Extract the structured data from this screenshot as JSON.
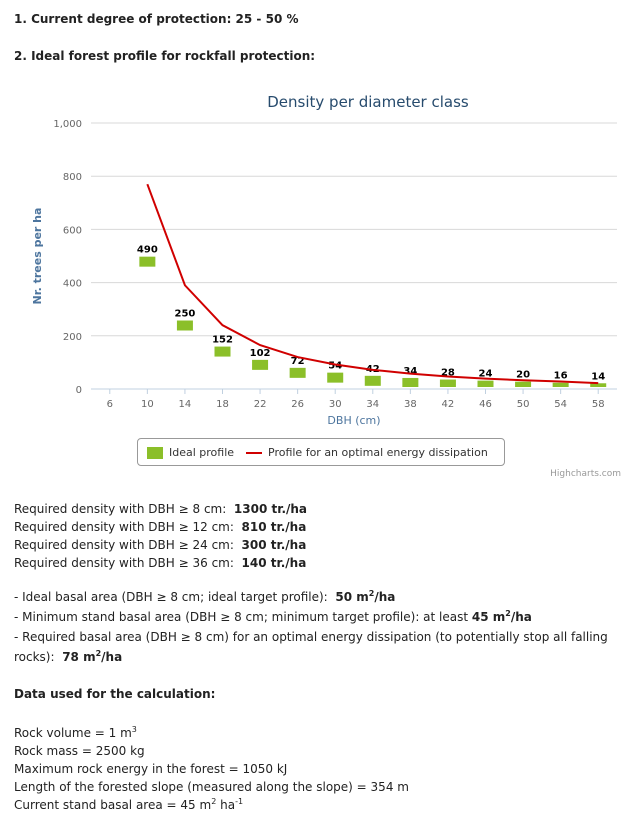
{
  "header": {
    "protection": "1. Current degree of protection: 25 - 50 %",
    "profile_title": "2. Ideal forest profile for rockfall protection:"
  },
  "chart_data": {
    "type": "bar",
    "title": "Density per diameter class",
    "xlabel": "DBH (cm)",
    "ylabel": "Nr. trees per ha",
    "ylim": [
      0,
      1000
    ],
    "yticks": [
      "0",
      "200",
      "400",
      "600",
      "800",
      "1,000"
    ],
    "x_ticks": [
      6,
      10,
      14,
      18,
      22,
      26,
      30,
      34,
      38,
      42,
      46,
      50,
      54,
      58
    ],
    "xlim": [
      4,
      60
    ],
    "grid": true,
    "legend_position": "bottom",
    "bar_color": "#8BBF29",
    "line_color": "#d00000",
    "bars": {
      "name": "Ideal profile",
      "x": [
        10,
        14,
        18,
        22,
        26,
        30,
        34,
        38,
        42,
        46,
        50,
        54,
        58
      ],
      "values": [
        490,
        250,
        152,
        102,
        72,
        54,
        42,
        34,
        28,
        24,
        20,
        16,
        14
      ],
      "labels": [
        "490",
        "250",
        "152",
        "102",
        "72",
        "54",
        "42",
        "34",
        "28",
        "24",
        "20",
        "16",
        "14"
      ]
    },
    "line": {
      "name": "Profile for an optimal energy dissipation",
      "x": [
        10,
        14,
        18,
        22,
        26,
        30,
        34,
        38,
        42,
        46,
        50,
        54,
        58
      ],
      "values": [
        770,
        390,
        240,
        165,
        120,
        92,
        72,
        58,
        47,
        39,
        33,
        28,
        22
      ]
    }
  },
  "credit": "Highcharts.com",
  "density": [
    {
      "label": "Required density with DBH ≥ 8 cm:",
      "value": "1300 tr./ha"
    },
    {
      "label": "Required density with DBH ≥ 12 cm:",
      "value": "810 tr./ha"
    },
    {
      "label": "Required density with DBH ≥ 24 cm:",
      "value": "300 tr./ha"
    },
    {
      "label": "Required density with DBH ≥ 36 cm:",
      "value": "140 tr./ha"
    }
  ],
  "basal": {
    "ideal_label": "- Ideal basal area (DBH ≥ 8 cm; ideal target profile):",
    "ideal_value": "50 m",
    "min_label": "- Minimum stand basal area (DBH ≥ 8 cm; minimum target profile):   at least",
    "min_value": "45 m",
    "req_label_1": "- Required basal area (DBH ≥ 8 cm) for an optimal energy dissipation (to potentially stop all falling",
    "req_label_2": "rocks):",
    "req_value": "78 m",
    "unit_suffix": "/ha",
    "sup2": "2"
  },
  "calc": {
    "title": "Data used for the calculation:",
    "rock_volume": "Rock volume = 1 m",
    "sup3": "3",
    "rock_mass": "Rock mass = 2500 kg",
    "max_energy": "Maximum rock energy in the forest = 1050 kJ",
    "slope_length": "Length of the forested slope (measured along the slope) = 354 m",
    "stand_basal": "Current stand basal area = 45 m",
    "ha": " ha",
    "sup_neg1": "-1"
  }
}
